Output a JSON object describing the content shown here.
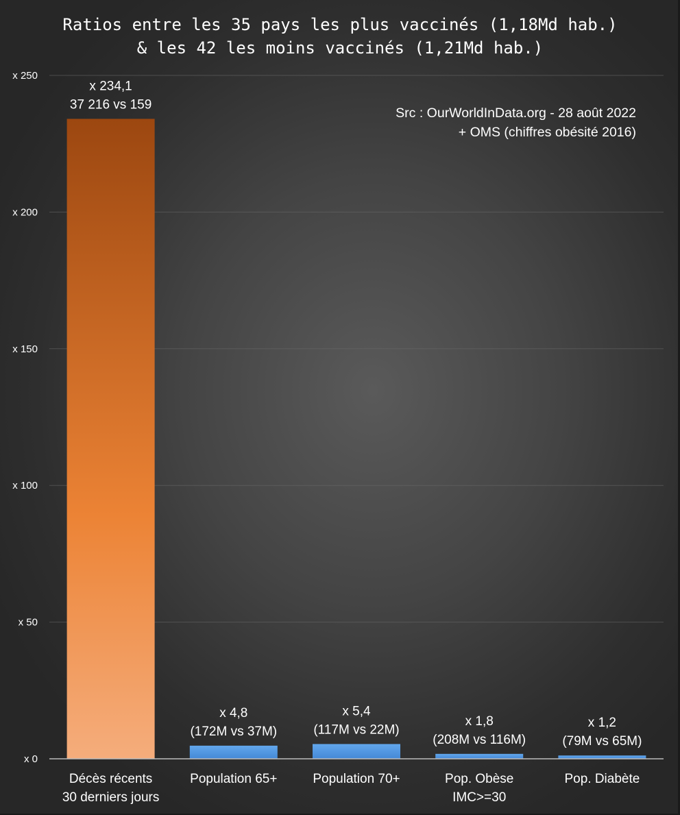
{
  "chart_data": {
    "type": "bar",
    "title": "Ratios entre les 35 pays les plus vaccinés (1,18Md hab.)",
    "subtitle": "& les 42 les moins vaccinés (1,21Md hab.)",
    "source": [
      "Src : OurWorldInData.org - 28 août 2022",
      "+ OMS (chiffres obésité 2016)"
    ],
    "categories": [
      [
        "Décès récents",
        "30 derniers jours"
      ],
      [
        "Population 65+"
      ],
      [
        "Population 70+"
      ],
      [
        "Pop. Obèse",
        "IMC>=30"
      ],
      [
        "Pop. Diabète"
      ]
    ],
    "values": [
      234.1,
      4.8,
      5.4,
      1.8,
      1.2
    ],
    "data_labels": [
      [
        "x 234,1",
        "37 216 vs 159"
      ],
      [
        "x 4,8",
        "(172M vs 37M)"
      ],
      [
        "x 5,4",
        "(117M vs 22M)"
      ],
      [
        "x 1,8",
        "(208M vs 116M)"
      ],
      [
        "x 1,2",
        "(79M vs 65M)"
      ]
    ],
    "yticks": [
      0,
      50,
      100,
      150,
      200,
      250
    ],
    "ytick_labels": [
      "x 0",
      "x 50",
      "x 100",
      "x 150",
      "x 200",
      "x 250"
    ],
    "ylim": [
      0,
      250
    ],
    "xlabel": "",
    "ylabel": "",
    "grid": true,
    "colors": {
      "highlight_top": "#9c4710",
      "highlight_mid": "#ec8335",
      "highlight_bottom": "#f5ad7c",
      "bar_top": "#62a7ec",
      "bar_bottom": "#4488d6",
      "text": "#ffffff"
    }
  }
}
